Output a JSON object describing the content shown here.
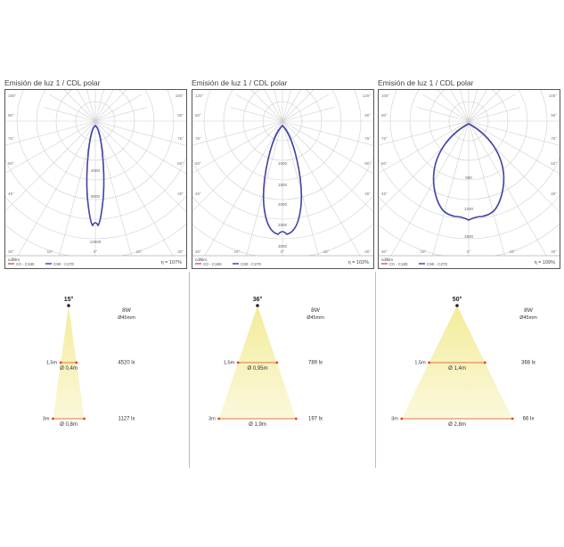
{
  "polar_panels": [
    {
      "title": "Emisión de luz 1 / CDL polar",
      "eta": "η = 107%",
      "unit": "cd/klm",
      "legend": [
        "C0 - C180",
        "C90 - C270"
      ],
      "angle_labels": [
        "180°",
        "180°",
        "90°",
        "90°",
        "75°",
        "75°",
        "60°",
        "60°",
        "45°",
        "45°",
        "30°",
        "15°",
        "0°",
        "15°",
        "30°"
      ],
      "radial_labels": [
        "4000",
        "8000",
        "12000"
      ],
      "shape": "narrow"
    },
    {
      "title": "Emisión de luz 1 / CDL polar",
      "eta": "η = 102%",
      "unit": "cd/klm",
      "legend": [
        "C0 - C180",
        "C90 - C270"
      ],
      "angle_labels": [
        "120°",
        "120°",
        "90°",
        "90°",
        "75°",
        "75°",
        "60°",
        "60°",
        "45°",
        "45°",
        "30°",
        "15°",
        "0°",
        "15°",
        "30°"
      ],
      "radial_labels": [
        "1000",
        "1500",
        "2000",
        "2500",
        "3000"
      ],
      "shape": "medium"
    },
    {
      "title": "Emisión de luz 1 / CDL polar",
      "eta": "η = 109%",
      "unit": "cd/klm",
      "legend": [
        "C0 - C180",
        "C90 - C270"
      ],
      "angle_labels": [
        "105°",
        "105°",
        "90°",
        "90°",
        "75°",
        "75°",
        "60°",
        "60°",
        "45°",
        "45°",
        "30°",
        "15°",
        "0°",
        "15°",
        "30°"
      ],
      "radial_labels": [
        "800",
        "1200",
        "1600"
      ],
      "shape": "wide"
    }
  ],
  "beam_panels": [
    {
      "angle": "15°",
      "power": "8W",
      "diameter": "Ø45mm",
      "d1_label": "1,5m",
      "d1_diam": "Ø 0,4m",
      "d1_lux": "4520 lx",
      "d2_label": "3m",
      "d2_diam": "Ø 0,8m",
      "d2_lux": "1127 lx",
      "beam_deg": 15
    },
    {
      "angle": "36°",
      "power": "8W",
      "diameter": "Ø45mm",
      "d1_label": "1,5m",
      "d1_diam": "Ø 0,95m",
      "d1_lux": "789 lx",
      "d2_label": "3m",
      "d2_diam": "Ø 1,9m",
      "d2_lux": "197 lx",
      "beam_deg": 36
    },
    {
      "angle": "50°",
      "power": "8W",
      "diameter": "Ø45mm",
      "d1_label": "1,5m",
      "d1_diam": "Ø 1,4m",
      "d1_lux": "368 lx",
      "d2_label": "3m",
      "d2_diam": "Ø 2,8m",
      "d2_lux": "66 lx",
      "beam_deg": 50
    }
  ],
  "colors": {
    "c0": "#d9534f",
    "c90": "#2b3fb0",
    "grid": "#cfcfcf",
    "beam_top": "#f3ec9a",
    "beam_bottom": "#fbf8dc",
    "marker": "#d9481a"
  }
}
